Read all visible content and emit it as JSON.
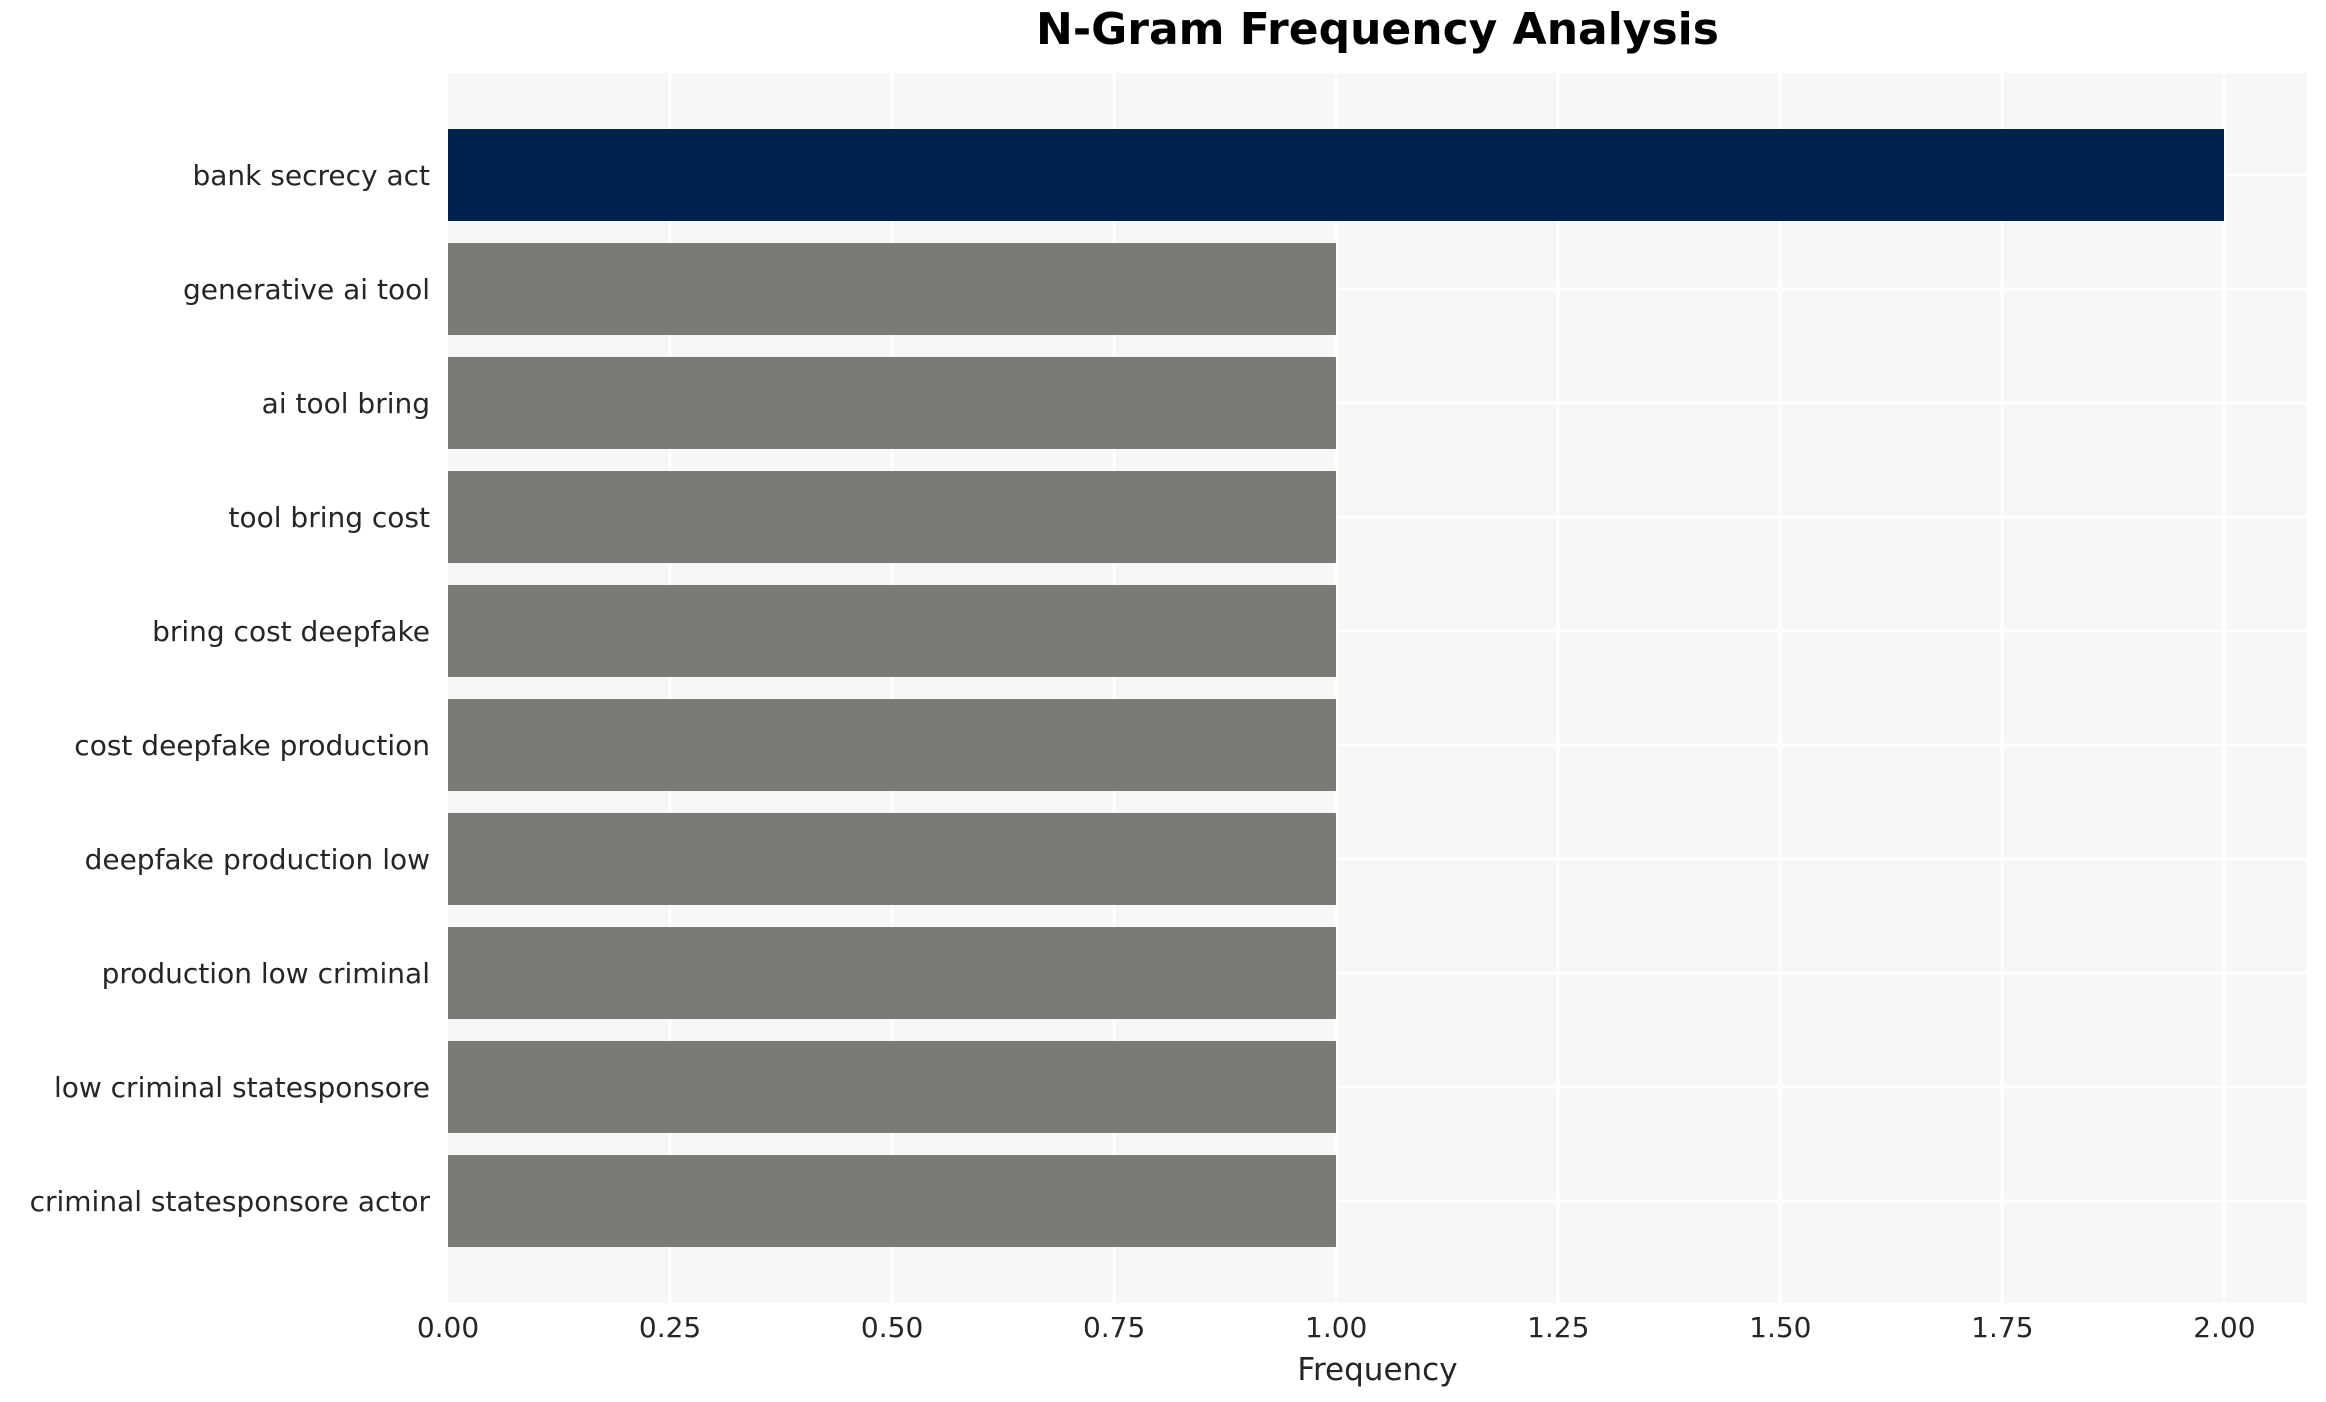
{
  "chart_data": {
    "type": "bar",
    "orientation": "horizontal",
    "title": "N-Gram Frequency Analysis",
    "xlabel": "Frequency",
    "ylabel": "",
    "categories": [
      "bank secrecy act",
      "generative ai tool",
      "ai tool bring",
      "tool bring cost",
      "bring cost deepfake",
      "cost deepfake production",
      "deepfake production low",
      "production low criminal",
      "low criminal statesponsore",
      "criminal statesponsore actor"
    ],
    "values": [
      2,
      1,
      1,
      1,
      1,
      1,
      1,
      1,
      1,
      1
    ],
    "bar_colors": [
      "#00234d",
      "#7c7a77",
      "#7c7a77",
      "#7c7a77",
      "#7c7a77",
      "#7c7a77",
      "#7c7a77",
      "#7c7a77",
      "#7c7a77",
      "#7c7a77"
    ],
    "xticks": [
      {
        "value": 0.0,
        "label": "0.00"
      },
      {
        "value": 0.25,
        "label": "0.25"
      },
      {
        "value": 0.5,
        "label": "0.50"
      },
      {
        "value": 0.75,
        "label": "0.75"
      },
      {
        "value": 1.0,
        "label": "1.00"
      },
      {
        "value": 1.25,
        "label": "1.25"
      },
      {
        "value": 1.5,
        "label": "1.50"
      },
      {
        "value": 1.75,
        "label": "1.75"
      },
      {
        "value": 2.0,
        "label": "2.00"
      }
    ],
    "xlim": [
      0,
      2.093
    ],
    "grid": true,
    "legend": false,
    "colors": {
      "plot_background": "#f7f7f7",
      "figure_background": "#ffffff",
      "grid_line": "#ffffff",
      "tick_text": "#262626",
      "title_text": "#000000",
      "highlight_bar": "#00234d",
      "default_bar": "#7c7a77"
    }
  }
}
